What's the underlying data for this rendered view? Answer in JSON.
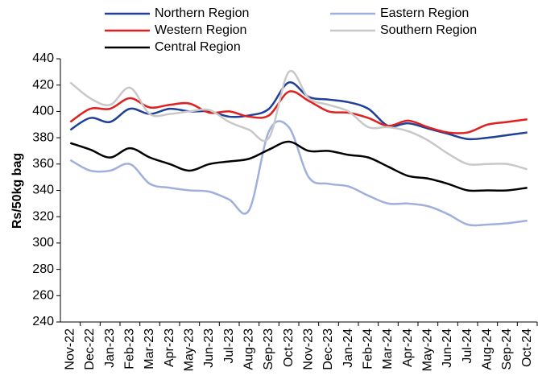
{
  "chart_data": {
    "type": "line",
    "y_label": "Rs/50kg bag",
    "categories": [
      "Nov-22",
      "Dec-22",
      "Jan-23",
      "Feb-23",
      "Mar-23",
      "Apr-23",
      "May-23",
      "Jun-23",
      "Jul-23",
      "Aug-23",
      "Sep-23",
      "Oct-23",
      "Nov-23",
      "Dec-23",
      "Jan-24",
      "Feb-24",
      "Mar-24",
      "Apr-24",
      "May-24",
      "Jun-24",
      "Jul-24",
      "Aug-24",
      "Sep-24",
      "Oct-24"
    ],
    "series": [
      {
        "name": "Northern Region",
        "color": "#1f3f99",
        "values": [
          386,
          395,
          392,
          402,
          398,
          402,
          400,
          400,
          396,
          397,
          402,
          422,
          411,
          409,
          407,
          402,
          389,
          391,
          387,
          383,
          379,
          380,
          382,
          384
        ]
      },
      {
        "name": "Eastern Region",
        "color": "#9fb0dc",
        "values": [
          363,
          355,
          355,
          360,
          345,
          342,
          340,
          339,
          333,
          325,
          385,
          388,
          350,
          345,
          343,
          336,
          330,
          330,
          328,
          322,
          314,
          314,
          315,
          317
        ]
      },
      {
        "name": "Western Region",
        "color": "#e0201f",
        "values": [
          392,
          402,
          402,
          410,
          403,
          405,
          406,
          399,
          400,
          396,
          397,
          415,
          408,
          400,
          399,
          395,
          389,
          393,
          388,
          384,
          384,
          390,
          392,
          394
        ]
      },
      {
        "name": "Southern Region",
        "color": "#c8c8c8",
        "values": [
          422,
          410,
          405,
          418,
          398,
          398,
          400,
          401,
          392,
          386,
          380,
          430,
          410,
          405,
          400,
          388,
          388,
          385,
          378,
          368,
          360,
          360,
          360,
          356
        ]
      },
      {
        "name": "Central Region",
        "color": "#000000",
        "values": [
          376,
          371,
          365,
          372,
          365,
          360,
          355,
          360,
          362,
          364,
          371,
          377,
          370,
          370,
          367,
          365,
          358,
          351,
          349,
          345,
          340,
          340,
          340,
          342
        ]
      }
    ],
    "ylim": [
      240,
      440
    ],
    "yticks": [
      240,
      260,
      280,
      300,
      320,
      340,
      360,
      380,
      400,
      420,
      440
    ]
  }
}
